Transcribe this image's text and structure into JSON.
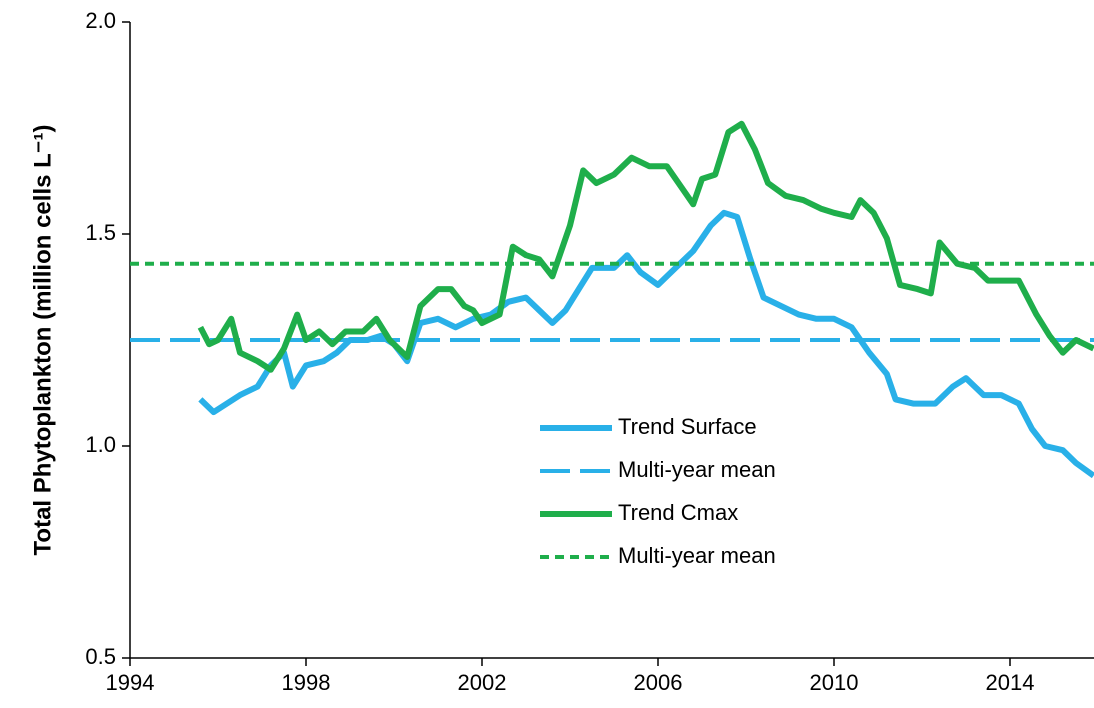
{
  "chart_data": {
    "type": "line",
    "y_label": "Total Phytoplankton (million cells L⁻¹)",
    "xlim": [
      1994,
      2016
    ],
    "xticks": [
      1994,
      1998,
      2002,
      2006,
      2010,
      2014
    ],
    "ylim": [
      0.5,
      2.0
    ],
    "yticks": [
      0.5,
      {
        "value": 1,
        "label": "1.0"
      },
      1.5,
      {
        "value": 2,
        "label": "2.0"
      }
    ],
    "grid": false,
    "legend": "center",
    "series": [
      {
        "name": "Trend Surface",
        "color": "#29b0e8",
        "dash": "solid",
        "x": [
          1995.6,
          1995.9,
          1996.2,
          1996.5,
          1996.9,
          1997.2,
          1997.5,
          1997.7,
          1998.0,
          1998.4,
          1998.7,
          1999.0,
          1999.4,
          1999.7,
          2000.0,
          2000.3,
          2000.6,
          2001.0,
          2001.4,
          2001.8,
          2002.2,
          2002.6,
          2003.0,
          2003.3,
          2003.6,
          2003.9,
          2004.2,
          2004.5,
          2005.0,
          2005.3,
          2005.6,
          2006.0,
          2006.4,
          2006.8,
          2007.2,
          2007.5,
          2007.8,
          2008.1,
          2008.4,
          2008.8,
          2009.2,
          2009.6,
          2010.0,
          2010.4,
          2010.8,
          2011.2,
          2011.4,
          2011.8,
          2012.3,
          2012.7,
          2013.0,
          2013.4,
          2013.8,
          2014.2,
          2014.5,
          2014.8,
          2015.2,
          2015.5,
          2015.9
        ],
        "values": [
          1.11,
          1.08,
          1.1,
          1.12,
          1.14,
          1.19,
          1.22,
          1.14,
          1.19,
          1.2,
          1.22,
          1.25,
          1.25,
          1.26,
          1.24,
          1.2,
          1.29,
          1.3,
          1.28,
          1.3,
          1.31,
          1.34,
          1.35,
          1.32,
          1.29,
          1.32,
          1.37,
          1.42,
          1.42,
          1.45,
          1.41,
          1.38,
          1.42,
          1.46,
          1.52,
          1.55,
          1.54,
          1.44,
          1.35,
          1.33,
          1.31,
          1.3,
          1.3,
          1.28,
          1.22,
          1.17,
          1.11,
          1.1,
          1.1,
          1.14,
          1.16,
          1.12,
          1.12,
          1.1,
          1.04,
          1.0,
          0.99,
          0.96,
          0.93
        ]
      },
      {
        "name": "Multi-year mean",
        "color": "#29b0e8",
        "dash": "dashed",
        "x": [
          1994,
          2016
        ],
        "values": [
          1.25,
          1.25
        ]
      },
      {
        "name": "Trend Cmax",
        "color": "#1fae4b",
        "dash": "solid",
        "x": [
          1995.6,
          1995.8,
          1996.0,
          1996.3,
          1996.5,
          1996.9,
          1997.2,
          1997.5,
          1997.8,
          1998.0,
          1998.3,
          1998.6,
          1998.9,
          1999.3,
          1999.6,
          1999.9,
          2000.3,
          2000.6,
          2001.0,
          2001.3,
          2001.6,
          2001.8,
          2002.0,
          2002.4,
          2002.7,
          2003.0,
          2003.3,
          2003.6,
          2004.0,
          2004.3,
          2004.6,
          2005.0,
          2005.4,
          2005.8,
          2006.2,
          2006.6,
          2006.8,
          2007.0,
          2007.3,
          2007.6,
          2007.9,
          2008.2,
          2008.5,
          2008.9,
          2009.3,
          2009.7,
          2010.0,
          2010.4,
          2010.6,
          2010.9,
          2011.2,
          2011.5,
          2011.9,
          2012.2,
          2012.4,
          2012.8,
          2013.2,
          2013.5,
          2013.9,
          2014.2,
          2014.6,
          2014.9,
          2015.2,
          2015.5,
          2015.9
        ],
        "values": [
          1.28,
          1.24,
          1.25,
          1.3,
          1.22,
          1.2,
          1.18,
          1.23,
          1.31,
          1.25,
          1.27,
          1.24,
          1.27,
          1.27,
          1.3,
          1.25,
          1.21,
          1.33,
          1.37,
          1.37,
          1.33,
          1.32,
          1.29,
          1.31,
          1.47,
          1.45,
          1.44,
          1.4,
          1.52,
          1.65,
          1.62,
          1.64,
          1.68,
          1.66,
          1.66,
          1.6,
          1.57,
          1.63,
          1.64,
          1.74,
          1.76,
          1.7,
          1.62,
          1.59,
          1.58,
          1.56,
          1.55,
          1.54,
          1.58,
          1.55,
          1.49,
          1.38,
          1.37,
          1.36,
          1.48,
          1.43,
          1.42,
          1.39,
          1.39,
          1.39,
          1.31,
          1.26,
          1.22,
          1.25,
          1.23
        ]
      },
      {
        "name": "Multi-year mean",
        "color": "#1fae4b",
        "dash": "dotted",
        "x": [
          1994,
          2016
        ],
        "values": [
          1.43,
          1.43
        ]
      }
    ]
  }
}
